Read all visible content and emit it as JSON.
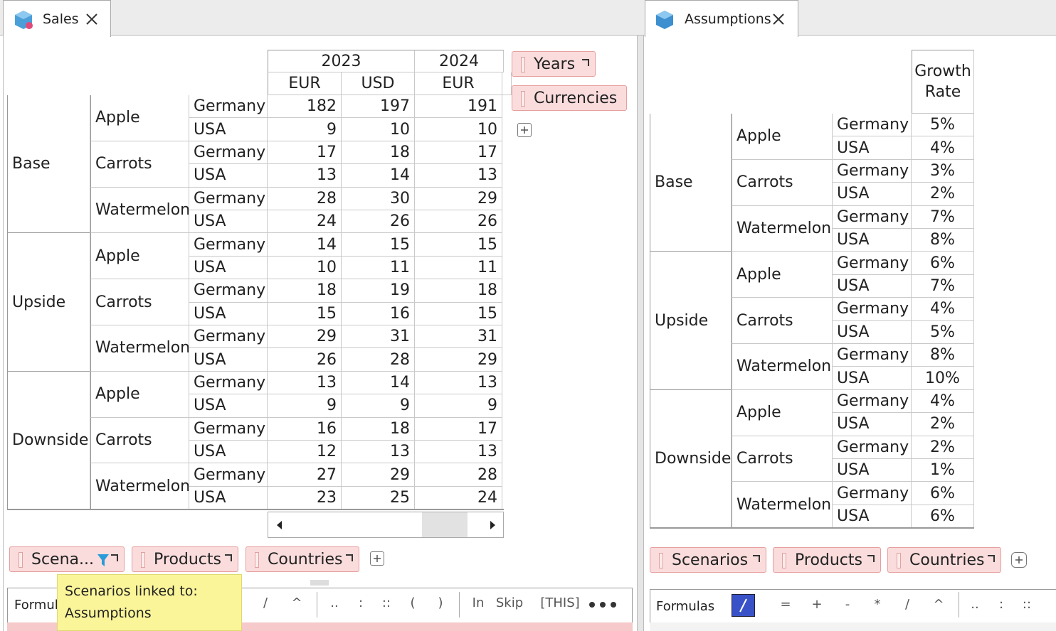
{
  "sales": {
    "tab": "Sales",
    "years": [
      "2023",
      "2024"
    ],
    "currencies": [
      "EUR",
      "USD",
      "EUR"
    ],
    "scenarios": [
      "Base",
      "Upside",
      "Downside"
    ],
    "products": [
      "Apple",
      "Carrots",
      "Watermelon"
    ],
    "countries": [
      "Germany",
      "USA"
    ],
    "rows": [
      [
        182,
        197,
        191
      ],
      [
        9,
        10,
        10
      ],
      [
        17,
        18,
        17
      ],
      [
        13,
        14,
        13
      ],
      [
        28,
        30,
        29
      ],
      [
        24,
        26,
        26
      ],
      [
        14,
        15,
        15
      ],
      [
        10,
        11,
        11
      ],
      [
        18,
        19,
        18
      ],
      [
        15,
        16,
        15
      ],
      [
        29,
        31,
        31
      ],
      [
        26,
        28,
        29
      ],
      [
        13,
        14,
        13
      ],
      [
        9,
        9,
        9
      ],
      [
        16,
        18,
        17
      ],
      [
        12,
        13,
        13
      ],
      [
        27,
        29,
        28
      ],
      [
        23,
        25,
        24
      ]
    ],
    "column_pills": [
      "Years",
      "Currencies"
    ],
    "row_pills": [
      "Scena...",
      "Products",
      "Countries"
    ],
    "tooltip": [
      "Scenarios linked to:",
      "Assumptions"
    ],
    "formula_label": "Formul",
    "formula_buttons": [
      "/",
      "^",
      "..",
      ":",
      "::",
      "(",
      ")",
      "In",
      "Skip",
      "[THIS]"
    ]
  },
  "assumptions": {
    "tab": "Assumptions",
    "column_header": "Growth Rate",
    "scenarios": [
      "Base",
      "Upside",
      "Downside"
    ],
    "products": [
      "Apple",
      "Carrots",
      "Watermelon"
    ],
    "countries": [
      "Germany",
      "USA"
    ],
    "rows": [
      "5%",
      "4%",
      "3%",
      "2%",
      "7%",
      "8%",
      "6%",
      "7%",
      "4%",
      "5%",
      "8%",
      "10%",
      "4%",
      "2%",
      "2%",
      "1%",
      "6%",
      "6%"
    ],
    "row_pills": [
      "Scenarios",
      "Products",
      "Countries"
    ],
    "formula_label": "Formulas",
    "formula_buttons": [
      "=",
      "+",
      "-",
      "*",
      "/",
      "^",
      "..",
      ":",
      "::"
    ]
  }
}
